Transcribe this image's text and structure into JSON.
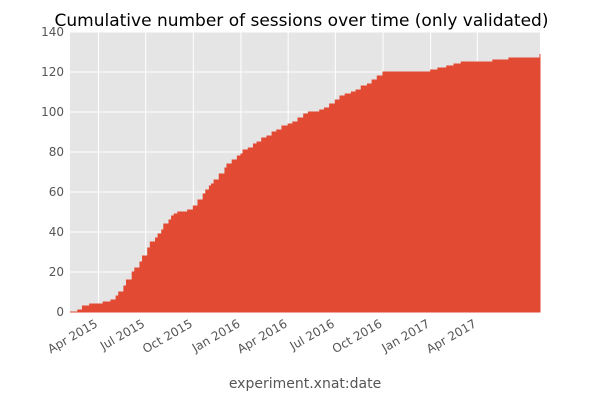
{
  "chart_data": {
    "type": "area",
    "title": "Cumulative number of sessions over time (only validated)",
    "xlabel": "experiment.xnat:date",
    "ylabel": "",
    "ylim": [
      0,
      140
    ],
    "y_ticks": [
      0,
      20,
      40,
      60,
      80,
      100,
      120,
      140
    ],
    "xlim": [
      "2015-02-05",
      "2017-07-31"
    ],
    "x_ticks": [
      {
        "date": "2015-04-01",
        "label": "Apr 2015"
      },
      {
        "date": "2015-07-01",
        "label": "Jul 2015"
      },
      {
        "date": "2015-10-01",
        "label": "Oct 2015"
      },
      {
        "date": "2016-01-01",
        "label": "Jan 2016"
      },
      {
        "date": "2016-04-01",
        "label": "Apr 2016"
      },
      {
        "date": "2016-07-01",
        "label": "Jul 2016"
      },
      {
        "date": "2016-10-01",
        "label": "Oct 2016"
      },
      {
        "date": "2017-01-01",
        "label": "Jan 2017"
      },
      {
        "date": "2017-04-01",
        "label": "Apr 2017"
      }
    ],
    "grid": true,
    "fill_color": "#e24a33",
    "background_color": "#e5e5e5",
    "x": [
      "2015-02-05",
      "2015-02-20",
      "2015-03-01",
      "2015-03-15",
      "2015-04-10",
      "2015-04-25",
      "2015-05-05",
      "2015-05-10",
      "2015-05-20",
      "2015-05-25",
      "2015-06-05",
      "2015-06-10",
      "2015-06-20",
      "2015-06-25",
      "2015-07-05",
      "2015-07-10",
      "2015-07-20",
      "2015-07-25",
      "2015-08-01",
      "2015-08-05",
      "2015-08-15",
      "2015-08-20",
      "2015-08-25",
      "2015-09-01",
      "2015-09-10",
      "2015-09-20",
      "2015-10-01",
      "2015-10-10",
      "2015-10-20",
      "2015-10-25",
      "2015-11-01",
      "2015-11-05",
      "2015-11-10",
      "2015-11-20",
      "2015-12-01",
      "2015-12-05",
      "2015-12-15",
      "2015-12-25",
      "2016-01-01",
      "2016-01-05",
      "2016-01-15",
      "2016-01-25",
      "2016-02-01",
      "2016-02-10",
      "2016-02-20",
      "2016-03-01",
      "2016-03-10",
      "2016-03-20",
      "2016-04-01",
      "2016-04-10",
      "2016-04-20",
      "2016-05-01",
      "2016-05-10",
      "2016-05-20",
      "2016-06-01",
      "2016-06-10",
      "2016-06-20",
      "2016-07-01",
      "2016-07-10",
      "2016-07-20",
      "2016-08-01",
      "2016-08-10",
      "2016-08-20",
      "2016-09-01",
      "2016-09-10",
      "2016-09-20",
      "2016-10-01",
      "2016-11-01",
      "2016-12-01",
      "2017-01-01",
      "2017-01-15",
      "2017-02-01",
      "2017-02-15",
      "2017-03-01",
      "2017-04-01",
      "2017-05-01",
      "2017-05-15",
      "2017-06-01",
      "2017-07-31"
    ],
    "y": [
      0,
      1,
      3,
      4,
      5,
      6,
      8,
      10,
      13,
      16,
      20,
      22,
      25,
      28,
      32,
      35,
      37,
      39,
      41,
      44,
      46,
      48,
      49,
      50,
      50,
      51,
      53,
      56,
      59,
      61,
      63,
      64,
      66,
      69,
      72,
      74,
      76,
      78,
      79,
      81,
      82,
      84,
      85,
      87,
      88,
      90,
      91,
      93,
      94,
      95,
      97,
      99,
      100,
      100,
      101,
      102,
      104,
      106,
      108,
      109,
      110,
      111,
      113,
      114,
      116,
      118,
      120,
      120,
      120,
      121,
      122,
      123,
      124,
      125,
      125,
      126,
      126,
      127,
      129
    ]
  }
}
